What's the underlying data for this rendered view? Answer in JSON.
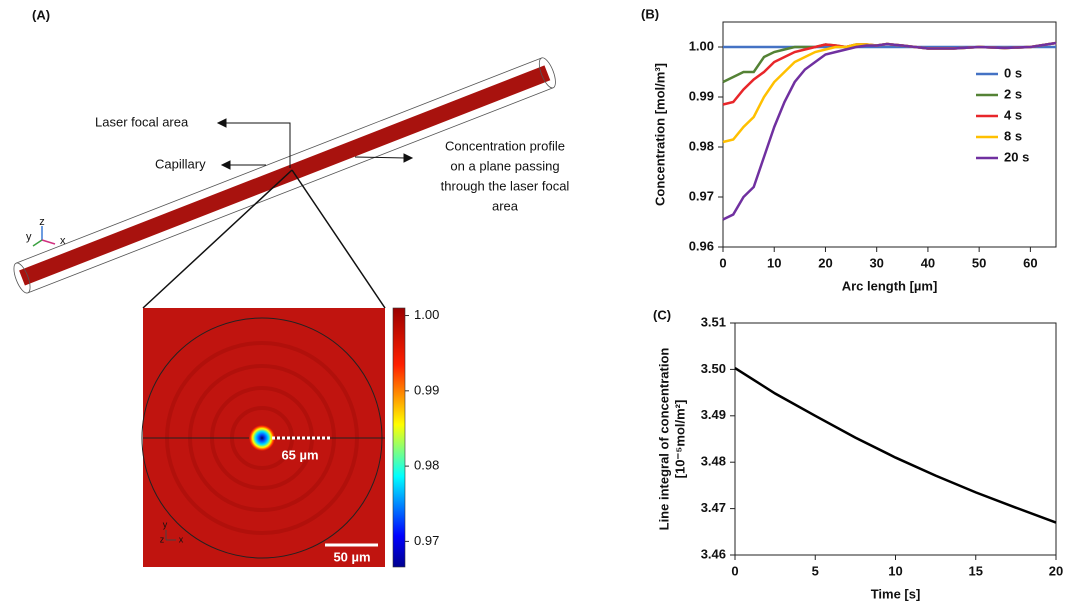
{
  "panel_a": {
    "label": "(A)",
    "annotations": {
      "focal": "Laser focal area",
      "capillary": "Capillary",
      "profile": [
        "Concentration profile",
        "on a plane passing",
        "through the laser focal",
        "area"
      ]
    },
    "triad_3d": [
      "y",
      "z",
      "x"
    ],
    "triad_2d": [
      "y",
      "z",
      "x"
    ],
    "line_label": "65 µm",
    "scale_bar": "50 µm",
    "colorbar": {
      "lim": [
        0.9666,
        1.001
      ],
      "ticks": [
        {
          "value": 1,
          "label": "1.00"
        },
        0.99,
        0.98,
        0.97
      ]
    }
  },
  "chart_data": [
    {
      "type": "line",
      "label": "(B)",
      "xlabel": "Arc length [µm]",
      "ylabel": "Concentration [mol/m³]",
      "x": [
        0,
        2,
        4,
        6,
        8,
        10,
        12,
        14,
        16,
        18,
        20,
        22,
        24,
        26,
        28,
        30,
        32,
        35,
        40,
        45,
        50,
        55,
        60,
        65
      ],
      "xlim": [
        0,
        65
      ],
      "xticks": [
        0,
        10,
        20,
        30,
        40,
        50,
        60
      ],
      "ylim": [
        0.96,
        1.005
      ],
      "yticks": [
        0.96,
        0.97,
        0.98,
        0.99,
        {
          "value": 1,
          "label": "1.00"
        }
      ],
      "legend": "right",
      "series": [
        {
          "name": "0 s",
          "color": "#4472c4",
          "values": [
            1,
            1,
            1,
            1,
            1,
            1,
            1,
            1,
            1,
            1,
            1,
            1,
            1,
            1,
            1,
            1,
            1,
            1,
            1,
            1,
            1,
            1,
            1,
            1
          ]
        },
        {
          "name": "2 s",
          "color": "#548235",
          "values": [
            0.993,
            0.994,
            0.995,
            0.995,
            0.998,
            0.999,
            0.9995,
            1,
            1,
            1,
            1.0005,
            1.0003,
            1,
            1.0005,
            1.0005,
            1.0003,
            1.0006,
            1.0003,
            0.9997,
            0.9997,
            1,
            0.9998,
            1,
            1.0008
          ]
        },
        {
          "name": "4 s",
          "color": "#e8262a",
          "values": [
            0.9885,
            0.989,
            0.9915,
            0.9935,
            0.995,
            0.997,
            0.998,
            0.999,
            0.9995,
            1,
            1.0005,
            1.0003,
            1,
            1.0005,
            1.0005,
            1.0003,
            1.0006,
            1.0003,
            0.9997,
            0.9997,
            1,
            0.9998,
            1,
            1.0008
          ]
        },
        {
          "name": "8 s",
          "color": "#ffc000",
          "values": [
            0.981,
            0.9815,
            0.984,
            0.986,
            0.99,
            0.993,
            0.995,
            0.997,
            0.998,
            0.999,
            0.9995,
            1,
            1,
            1.0005,
            1.0005,
            1.0003,
            1.0006,
            1.0003,
            0.9997,
            0.9997,
            1,
            0.9998,
            1,
            1.0008
          ]
        },
        {
          "name": "20 s",
          "color": "#7030a0",
          "values": [
            0.9655,
            0.9665,
            0.97,
            0.972,
            0.978,
            0.984,
            0.989,
            0.993,
            0.9955,
            0.997,
            0.9985,
            0.999,
            0.9995,
            1,
            1.0003,
            1.0003,
            1.0006,
            1.0003,
            0.9997,
            0.9997,
            1,
            0.9998,
            1,
            1.0008
          ]
        }
      ]
    },
    {
      "type": "line",
      "label": "(C)",
      "xlabel": "Time [s]",
      "ylabel": [
        "Line integral of concentration",
        "[10⁻⁵mol/m²]"
      ],
      "x": [
        0,
        2.5,
        5,
        7.5,
        10,
        12.5,
        15,
        17.5,
        20
      ],
      "xlim": [
        0,
        20
      ],
      "xticks": [
        0,
        5,
        10,
        15,
        20
      ],
      "ylim": [
        3.46,
        3.51
      ],
      "yticks": [
        3.46,
        3.47,
        3.48,
        3.49,
        {
          "value": 3.5,
          "label": "3.50"
        },
        3.51
      ],
      "series": [
        {
          "color": "#000000",
          "values": [
            3.5003,
            3.4948,
            3.49,
            3.4853,
            3.481,
            3.4771,
            3.4735,
            3.4702,
            3.467
          ]
        }
      ]
    }
  ]
}
